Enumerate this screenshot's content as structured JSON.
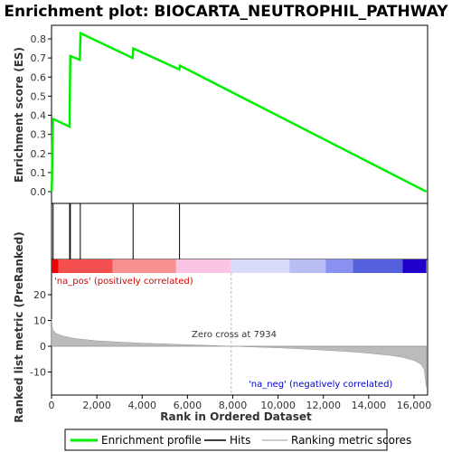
{
  "chart_data": [
    {
      "type": "line",
      "title": "Enrichment plot: BIOCARTA_NEUTROPHIL_PATHWAY",
      "ylabel": "Enrichment score (ES)",
      "ylim": [
        0,
        0.85
      ],
      "yticks": [
        "0.0",
        "0.1",
        "0.2",
        "0.3",
        "0.4",
        "0.5",
        "0.6",
        "0.7",
        "0.8"
      ],
      "xlim": [
        0,
        16600
      ],
      "series": [
        {
          "name": "Enrichment profile",
          "color": "#00ee00",
          "x": [
            0,
            20,
            40,
            60,
            90,
            800,
            810,
            830,
            1250,
            1280,
            3580,
            3610,
            5640,
            5670,
            16550
          ],
          "y": [
            0.0,
            0.05,
            0.27,
            0.38,
            0.38,
            0.34,
            0.53,
            0.71,
            0.69,
            0.83,
            0.7,
            0.75,
            0.64,
            0.66,
            0.0
          ]
        }
      ]
    },
    {
      "type": "line",
      "name": "hits",
      "hit_positions": [
        70,
        800,
        830,
        1270,
        3600,
        5650
      ]
    },
    {
      "type": "area",
      "ylabel": "Ranked list metric (PreRanked)",
      "xlabel": "Rank in Ordered Dataset",
      "ylim": [
        -17,
        24
      ],
      "yticks": [
        "-10",
        "0",
        "10",
        "20"
      ],
      "xticks": [
        "0",
        "2,000",
        "4,000",
        "6,000",
        "8,000",
        "10,000",
        "12,000",
        "14,000",
        "16,000"
      ],
      "xtick_values": [
        0,
        2000,
        4000,
        6000,
        8000,
        10000,
        12000,
        14000,
        16000
      ],
      "series": [
        {
          "name": "Ranking metric scores",
          "color": "#bbbbbb",
          "x": [
            0,
            50,
            200,
            500,
            1000,
            2000,
            3000,
            4000,
            5000,
            6000,
            7000,
            7934,
            9000,
            10000,
            11000,
            12000,
            13000,
            14000,
            15000,
            15500,
            16000,
            16300,
            16450,
            16550
          ],
          "y": [
            10.5,
            6.5,
            5.0,
            4.0,
            3.0,
            2.1,
            1.6,
            1.2,
            0.9,
            0.6,
            0.3,
            0.0,
            -0.3,
            -0.6,
            -1.0,
            -1.5,
            -2.0,
            -2.7,
            -3.6,
            -4.3,
            -5.5,
            -7.0,
            -9.0,
            -16.0
          ]
        }
      ],
      "annotations": {
        "positive": "'na_pos' (positively correlated)",
        "negative": "'na_neg' (negatively correlated)",
        "zero_cross": "Zero cross at 7934",
        "zero_cross_value": 7934,
        "positive_color": "#dd0000",
        "negative_color": "#0000cc"
      }
    }
  ],
  "color_bar": {
    "segments": [
      {
        "from": 0,
        "to": 300,
        "color": "#ee0000"
      },
      {
        "from": 300,
        "to": 2700,
        "color": "#f55050"
      },
      {
        "from": 2700,
        "to": 5500,
        "color": "#f79090"
      },
      {
        "from": 5500,
        "to": 7934,
        "color": "#fbc4e4"
      },
      {
        "from": 7934,
        "to": 10500,
        "color": "#d8dcf8"
      },
      {
        "from": 10500,
        "to": 12100,
        "color": "#b8bef4"
      },
      {
        "from": 12100,
        "to": 13300,
        "color": "#8a90f0"
      },
      {
        "from": 13300,
        "to": 15500,
        "color": "#5560dd"
      },
      {
        "from": 15500,
        "to": 16550,
        "color": "#2200cc"
      }
    ]
  },
  "legend": {
    "items": [
      {
        "label": "Enrichment profile",
        "color": "#00ee00"
      },
      {
        "label": "Hits",
        "color": "#000000"
      },
      {
        "label": "Ranking metric scores",
        "color": "#bbbbbb"
      }
    ]
  }
}
